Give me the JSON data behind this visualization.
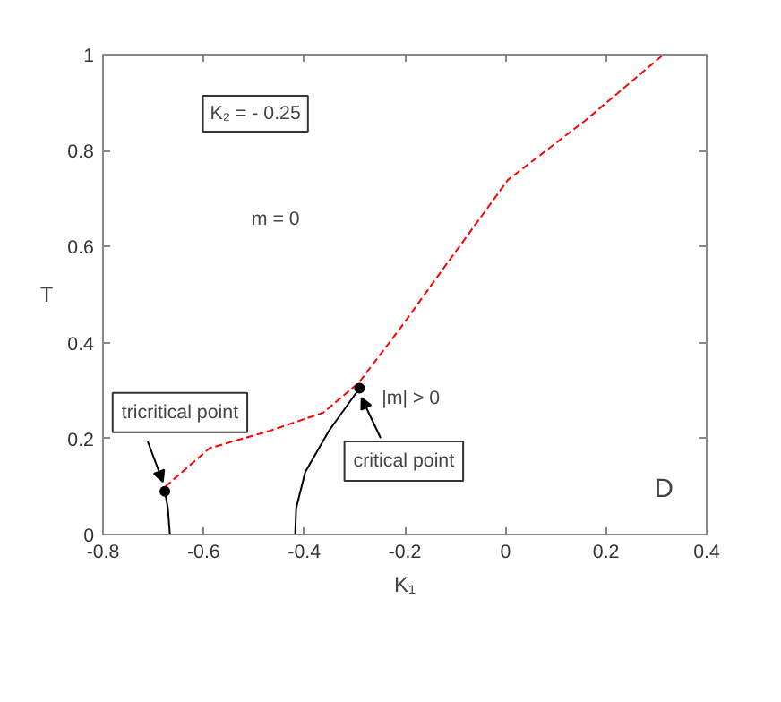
{
  "chart_data": {
    "type": "line",
    "xlabel": "K₁",
    "ylabel": "T",
    "xlim": [
      -0.8,
      0.4
    ],
    "xticks": [
      -0.8,
      -0.6,
      -0.4,
      -0.2,
      0,
      0.2,
      0.4
    ],
    "ylim": [
      0,
      1
    ],
    "yticks": [
      0,
      0.2,
      0.4,
      0.6,
      0.8,
      1
    ],
    "grid": false,
    "series": [
      {
        "line_style": "dashed",
        "color": "#ff0000",
        "x": [
          -0.676,
          -0.588,
          -0.469,
          -0.362,
          -0.291,
          -0.209,
          -0.125,
          0.005,
          0.159,
          0.314
        ],
        "values": [
          0.1,
          0.18,
          0.216,
          0.254,
          0.317,
          0.43,
          0.552,
          0.739,
          0.863,
          1.0
        ]
      },
      {
        "line_style": "solid",
        "color": "#000000",
        "x": [
          -0.667,
          -0.671,
          -0.677
        ],
        "values": [
          0,
          0.055,
          0.09
        ]
      },
      {
        "line_style": "solid",
        "color": "#000000",
        "x": [
          -0.418,
          -0.416,
          -0.398,
          -0.351,
          -0.29
        ],
        "values": [
          0,
          0.055,
          0.13,
          0.216,
          0.305
        ]
      },
      {
        "type": "scatter",
        "marker": "circle",
        "color": "#000000",
        "x": [
          -0.677,
          -0.29
        ],
        "values": [
          0.09,
          0.305
        ]
      }
    ],
    "annotations": [
      "K₂ = - 0.25",
      "m = 0",
      "|m| > 0",
      "D",
      {
        "text": "tricritical point",
        "x": -0.677,
        "y": 0.09
      },
      {
        "text": "critical point",
        "x": -0.29,
        "y": 0.305
      }
    ]
  }
}
